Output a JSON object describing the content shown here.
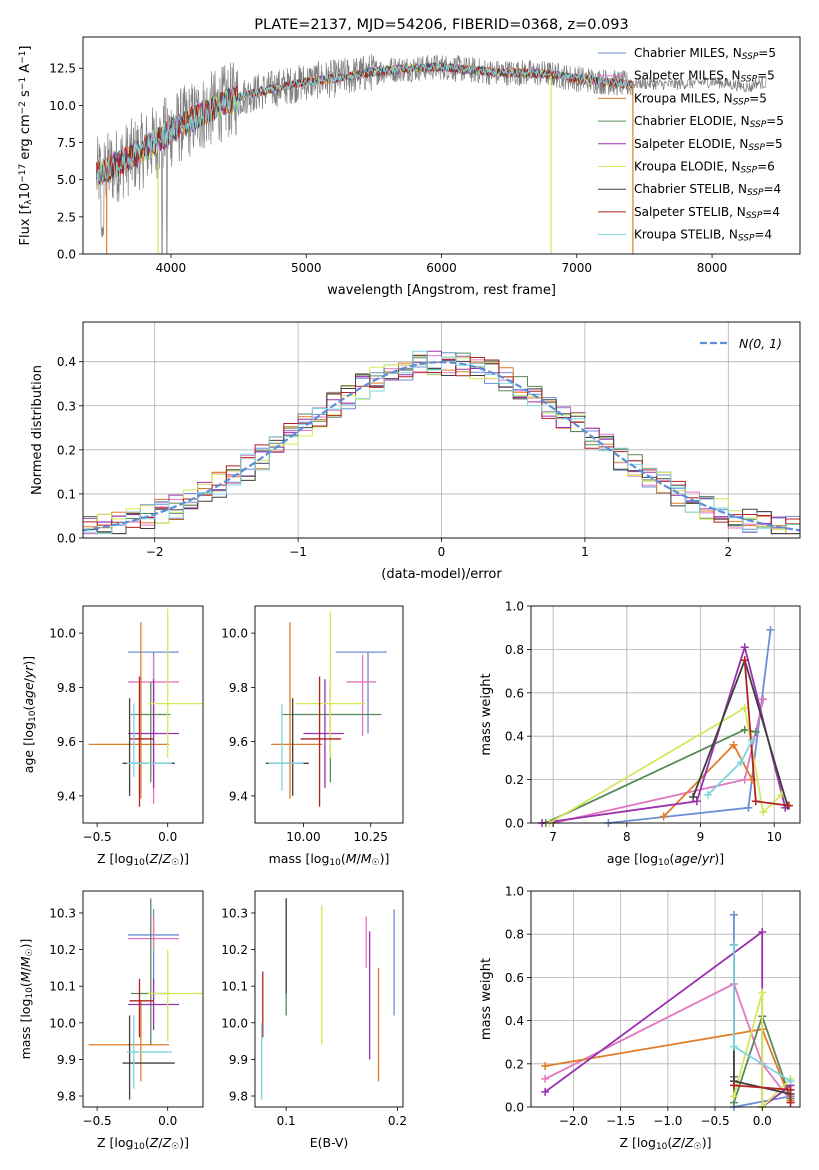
{
  "chart_data": [
    {
      "type": "line",
      "title": "PLATE=2137, MJD=54206, FIBERID=0368, z=0.093",
      "xlabel": "wavelength [Angstrom, rest frame]",
      "ylabel": "Flux [f_λ 10^-17 erg cm^-2 s^-1 A^-1]",
      "xlim": [
        3350,
        8650
      ],
      "ylim": [
        0,
        14.6
      ],
      "xticks": [
        4000,
        5000,
        6000,
        7000,
        8000
      ],
      "yticks": [
        0.0,
        2.5,
        5.0,
        7.5,
        10.0,
        12.5
      ],
      "legend_position": "right",
      "data_series": {
        "name": "data",
        "color": "#808080"
      },
      "continuum_x": [
        3450,
        3600,
        3800,
        4000,
        4200,
        4400,
        4600,
        4800,
        5000,
        5200,
        5400,
        5600,
        5800,
        6000,
        6200,
        6400,
        6600,
        6800,
        7000,
        7200,
        7400
      ],
      "continuum_y": [
        5.3,
        6.0,
        7.0,
        8.3,
        9.3,
        10.2,
        10.8,
        11.2,
        11.6,
        11.8,
        12.1,
        12.4,
        12.5,
        12.6,
        12.4,
        12.2,
        12.2,
        12.1,
        11.8,
        11.6,
        11.4
      ],
      "extended_x": [
        7400,
        7700,
        8000,
        8300
      ],
      "extended_y": [
        11.5,
        11.4,
        11.6,
        11.2
      ],
      "series": [
        {
          "name": "Chabrier MILES, N_SSP=5",
          "color": "#6b8fd4"
        },
        {
          "name": "Salpeter MILES, N_SSP=5",
          "color": "#e377c2"
        },
        {
          "name": "Kroupa MILES, N_SSP=5",
          "color": "#e07b27"
        },
        {
          "name": "Chabrier ELODIE, N_SSP=5",
          "color": "#5a8a5a"
        },
        {
          "name": "Salpeter ELODIE, N_SSP=5",
          "color": "#9b30b0"
        },
        {
          "name": "Kroupa ELODIE, N_SSP=6",
          "color": "#d4e85a"
        },
        {
          "name": "Chabrier STELIB, N_SSP=4",
          "color": "#404040"
        },
        {
          "name": "Salpeter STELIB, N_SSP=4",
          "color": "#b22222"
        },
        {
          "name": "Kroupa STELIB, N_SSP=4",
          "color": "#7fd4e0"
        }
      ]
    },
    {
      "type": "line",
      "xlabel": "(data-model)/error",
      "ylabel": "Normed distribution",
      "xlim": [
        -2.5,
        2.5
      ],
      "ylim": [
        0,
        0.49
      ],
      "xticks": [
        -2,
        -1,
        0,
        1,
        2
      ],
      "yticks": [
        0.0,
        0.1,
        0.2,
        0.3,
        0.4
      ],
      "legend": "N(0, 1)",
      "gaussian_color": "#5b8fd9",
      "bin_width": 0.1,
      "bins_start": -2.5
    },
    {
      "type": "scatter",
      "xlabel": "Z [log10(Z/Z☉)]",
      "ylabel": "age  [log10(age/yr)]",
      "xlim": [
        -0.6,
        0.25
      ],
      "ylim": [
        9.3,
        10.1
      ],
      "xticks": [
        -0.5,
        0.0
      ],
      "yticks": [
        9.4,
        9.6,
        9.8,
        10.0
      ],
      "points": [
        {
          "x": -0.1,
          "y": 9.93,
          "xerr": [
            0.18,
            0.18
          ],
          "yerr": [
            0.3,
            0.0
          ],
          "color": "#6b8fd4"
        },
        {
          "x": -0.1,
          "y": 9.82,
          "xerr": [
            0.18,
            0.18
          ],
          "yerr": [
            0.45,
            0.1
          ],
          "color": "#e377c2"
        },
        {
          "x": -0.19,
          "y": 9.59,
          "xerr": [
            0.37,
            0.2
          ],
          "yerr": [
            0.2,
            0.45
          ],
          "color": "#e07b27"
        },
        {
          "x": -0.12,
          "y": 9.7,
          "xerr": [
            0.14,
            0.14
          ],
          "yerr": [
            0.25,
            0.12
          ],
          "color": "#5a8a5a"
        },
        {
          "x": -0.1,
          "y": 9.63,
          "xerr": [
            0.18,
            0.18
          ],
          "yerr": [
            0.2,
            0.2
          ],
          "color": "#9b30b0"
        },
        {
          "x": 0.0,
          "y": 9.74,
          "xerr": [
            0.14,
            0.25
          ],
          "yerr": [
            0.2,
            0.35
          ],
          "color": "#d4e85a"
        },
        {
          "x": -0.27,
          "y": 9.52,
          "xerr": [
            0.05,
            0.32
          ],
          "yerr": [
            0.12,
            0.24
          ],
          "color": "#404040"
        },
        {
          "x": -0.2,
          "y": 9.61,
          "xerr": [
            0.07,
            0.1
          ],
          "yerr": [
            0.25,
            0.23
          ],
          "color": "#b22222"
        },
        {
          "x": -0.24,
          "y": 9.52,
          "xerr": [
            0.05,
            0.27
          ],
          "yerr": [
            0.05,
            0.22
          ],
          "color": "#7fd4e0"
        }
      ]
    },
    {
      "type": "scatter",
      "xlabel": "mass [log10(M/M☉)]",
      "ylabel": "",
      "xlim": [
        9.82,
        10.37
      ],
      "ylim": [
        9.3,
        10.1
      ],
      "xticks": [
        10.0,
        10.25
      ],
      "yticks": [
        9.4,
        9.6,
        9.8,
        10.0
      ],
      "points": [
        {
          "x": 10.24,
          "y": 9.93,
          "xerr": [
            0.12,
            0.07
          ],
          "yerr": [
            0.3,
            0.0
          ],
          "color": "#6b8fd4"
        },
        {
          "x": 10.22,
          "y": 9.82,
          "xerr": [
            0.06,
            0.05
          ],
          "yerr": [
            0.2,
            0.1
          ],
          "color": "#e377c2"
        },
        {
          "x": 9.95,
          "y": 9.59,
          "xerr": [
            0.07,
            0.12
          ],
          "yerr": [
            0.2,
            0.45
          ],
          "color": "#e07b27"
        },
        {
          "x": 10.1,
          "y": 9.7,
          "xerr": [
            0.18,
            0.19
          ],
          "yerr": [
            0.25,
            0.12
          ],
          "color": "#5a8a5a"
        },
        {
          "x": 10.08,
          "y": 9.63,
          "xerr": [
            0.08,
            0.07
          ],
          "yerr": [
            0.2,
            0.2
          ],
          "color": "#9b30b0"
        },
        {
          "x": 10.1,
          "y": 9.74,
          "xerr": [
            0.13,
            0.13
          ],
          "yerr": [
            0.2,
            0.34
          ],
          "color": "#d4e85a"
        },
        {
          "x": 9.96,
          "y": 9.52,
          "xerr": [
            0.1,
            0.06
          ],
          "yerr": [
            0.12,
            0.24
          ],
          "color": "#404040"
        },
        {
          "x": 10.06,
          "y": 9.61,
          "xerr": [
            0.07,
            0.08
          ],
          "yerr": [
            0.25,
            0.23
          ],
          "color": "#b22222"
        },
        {
          "x": 9.92,
          "y": 9.52,
          "xerr": [
            0.05,
            0.08
          ],
          "yerr": [
            0.1,
            0.22
          ],
          "color": "#7fd4e0"
        }
      ]
    },
    {
      "type": "line",
      "xlabel": "age  [log10(age/yr)]",
      "ylabel": "mass weight",
      "xlim": [
        6.7,
        10.35
      ],
      "ylim": [
        0,
        1.0
      ],
      "xticks": [
        7,
        8,
        9,
        10
      ],
      "yticks": [
        0.0,
        0.2,
        0.4,
        0.6,
        0.8,
        1.0
      ],
      "series": [
        {
          "color": "#6b8fd4",
          "x": [
            7.75,
            9.65,
            9.95
          ],
          "y": [
            0.0,
            0.07,
            0.89
          ]
        },
        {
          "color": "#e377c2",
          "x": [
            7.0,
            9.6,
            9.85
          ],
          "y": [
            0.0,
            0.2,
            0.57
          ]
        },
        {
          "color": "#e07b27",
          "x": [
            8.5,
            9.45,
            9.7
          ],
          "y": [
            0.03,
            0.36,
            0.2
          ]
        },
        {
          "color": "#5a8a5a",
          "x": [
            6.9,
            9.6,
            9.75
          ],
          "y": [
            0.0,
            0.43,
            0.42
          ]
        },
        {
          "color": "#9b30b0",
          "x": [
            6.85,
            8.95,
            9.6,
            10.15
          ],
          "y": [
            0.0,
            0.1,
            0.81,
            0.07
          ]
        },
        {
          "color": "#d4e85a",
          "x": [
            6.95,
            9.6,
            9.85,
            10.1
          ],
          "y": [
            0.0,
            0.53,
            0.05,
            0.13
          ]
        },
        {
          "color": "#404040",
          "x": [
            8.9,
            9.6,
            10.18
          ],
          "y": [
            0.12,
            0.75,
            0.08
          ]
        },
        {
          "color": "#b22222",
          "x": [
            9.6,
            9.75,
            10.2
          ],
          "y": [
            0.75,
            0.1,
            0.08
          ]
        },
        {
          "color": "#7fd4e0",
          "x": [
            9.1,
            9.55,
            9.7
          ],
          "y": [
            0.13,
            0.28,
            0.38
          ]
        }
      ]
    },
    {
      "type": "scatter",
      "xlabel": "Z [log10(Z/Z☉)]",
      "ylabel": "mass [log10(M/M☉)]",
      "xlim": [
        -0.6,
        0.25
      ],
      "ylim": [
        9.77,
        10.36
      ],
      "xticks": [
        -0.5,
        0.0
      ],
      "yticks": [
        9.8,
        9.9,
        10.0,
        10.1,
        10.2,
        10.3
      ],
      "points": [
        {
          "x": -0.1,
          "y": 10.24,
          "xerr": [
            0.18,
            0.18
          ],
          "yerr": [
            0.13,
            0.07
          ],
          "color": "#6b8fd4"
        },
        {
          "x": -0.1,
          "y": 10.23,
          "xerr": [
            0.18,
            0.18
          ],
          "yerr": [
            0.03,
            0.06
          ],
          "color": "#e377c2"
        },
        {
          "x": -0.19,
          "y": 9.94,
          "xerr": [
            0.37,
            0.2
          ],
          "yerr": [
            0.1,
            0.12
          ],
          "color": "#e07b27"
        },
        {
          "x": -0.12,
          "y": 10.08,
          "xerr": [
            0.14,
            0.14
          ],
          "yerr": [
            0.14,
            0.26
          ],
          "color": "#5a8a5a"
        },
        {
          "x": -0.1,
          "y": 10.05,
          "xerr": [
            0.18,
            0.18
          ],
          "yerr": [
            0.07,
            0.07
          ],
          "color": "#9b30b0"
        },
        {
          "x": 0.0,
          "y": 10.08,
          "xerr": [
            0.14,
            0.25
          ],
          "yerr": [
            0.13,
            0.12
          ],
          "color": "#d4e85a"
        },
        {
          "x": -0.27,
          "y": 9.89,
          "xerr": [
            0.05,
            0.32
          ],
          "yerr": [
            0.1,
            0.13
          ],
          "color": "#404040"
        },
        {
          "x": -0.2,
          "y": 10.06,
          "xerr": [
            0.07,
            0.1
          ],
          "yerr": [
            0.1,
            0.06
          ],
          "color": "#b22222"
        },
        {
          "x": -0.24,
          "y": 9.92,
          "xerr": [
            0.05,
            0.27
          ],
          "yerr": [
            0.1,
            0.1
          ],
          "color": "#7fd4e0"
        }
      ]
    },
    {
      "type": "scatter",
      "xlabel": "E(B-V)",
      "ylabel": "",
      "xlim": [
        0.072,
        0.205
      ],
      "ylim": [
        9.77,
        10.36
      ],
      "xticks": [
        0.1,
        0.2
      ],
      "yticks": [
        9.8,
        9.9,
        10.0,
        10.1,
        10.2,
        10.3
      ],
      "points": [
        {
          "x": 0.197,
          "y": 10.24,
          "yerr": [
            0.22,
            0.07
          ],
          "color": "#6b8fd4"
        },
        {
          "x": 0.172,
          "y": 10.23,
          "yerr": [
            0.08,
            0.06
          ],
          "color": "#e377c2"
        },
        {
          "x": 0.183,
          "y": 9.94,
          "yerr": [
            0.1,
            0.21
          ],
          "color": "#e07b27"
        },
        {
          "x": 0.1,
          "y": 10.08,
          "yerr": [
            0.06,
            0.26
          ],
          "color": "#5a8a5a"
        },
        {
          "x": 0.175,
          "y": 10.05,
          "yerr": [
            0.15,
            0.2
          ],
          "color": "#9b30b0"
        },
        {
          "x": 0.132,
          "y": 10.08,
          "yerr": [
            0.14,
            0.24
          ],
          "color": "#d4e85a"
        },
        {
          "x": 0.1,
          "y": 10.18,
          "yerr": [
            0.1,
            0.16
          ],
          "color": "#404040"
        },
        {
          "x": 0.079,
          "y": 10.08,
          "yerr": [
            0.12,
            0.06
          ],
          "color": "#b22222"
        },
        {
          "x": 0.078,
          "y": 9.95,
          "yerr": [
            0.16,
            0.05
          ],
          "color": "#7fd4e0"
        }
      ]
    },
    {
      "type": "line",
      "xlabel": "Z [log10(Z/Z☉)]",
      "ylabel": "mass weight",
      "xlim": [
        -2.45,
        0.4
      ],
      "ylim": [
        0,
        1.0
      ],
      "xticks": [
        -2.0,
        -1.5,
        -1.0,
        -0.5,
        0.0
      ],
      "yticks": [
        0.0,
        0.2,
        0.4,
        0.6,
        0.8,
        1.0
      ],
      "series": [
        {
          "color": "#6b8fd4",
          "x": [
            -0.3,
            -0.3,
            0.3
          ],
          "y": [
            0.89,
            0.0,
            0.05
          ]
        },
        {
          "color": "#e377c2",
          "x": [
            -2.3,
            -0.3,
            0.0,
            0.3
          ],
          "y": [
            0.13,
            0.57,
            0.2,
            0.03
          ]
        },
        {
          "color": "#e07b27",
          "x": [
            -2.3,
            0.0,
            0.3
          ],
          "y": [
            0.19,
            0.36,
            0.03
          ]
        },
        {
          "color": "#5a8a5a",
          "x": [
            -0.3,
            -0.3,
            0.0,
            0.3
          ],
          "y": [
            0.14,
            0.02,
            0.42,
            0.04
          ]
        },
        {
          "color": "#9b30b0",
          "x": [
            -2.3,
            0.0,
            0.0,
            0.3
          ],
          "y": [
            0.07,
            0.81,
            0.0,
            0.1
          ]
        },
        {
          "color": "#d4e85a",
          "x": [
            -0.3,
            0.0,
            0.0,
            0.3
          ],
          "y": [
            0.05,
            0.53,
            0.0,
            0.13
          ]
        },
        {
          "color": "#404040",
          "x": [
            -0.3,
            -0.3,
            0.3
          ],
          "y": [
            0.75,
            0.12,
            0.06
          ]
        },
        {
          "color": "#b22222",
          "x": [
            -0.3,
            0.3,
            0.3
          ],
          "y": [
            0.1,
            0.08,
            0.02
          ]
        },
        {
          "color": "#7fd4e0",
          "x": [
            -0.3,
            -0.3,
            0.3
          ],
          "y": [
            0.75,
            0.28,
            0.12
          ]
        }
      ]
    }
  ]
}
